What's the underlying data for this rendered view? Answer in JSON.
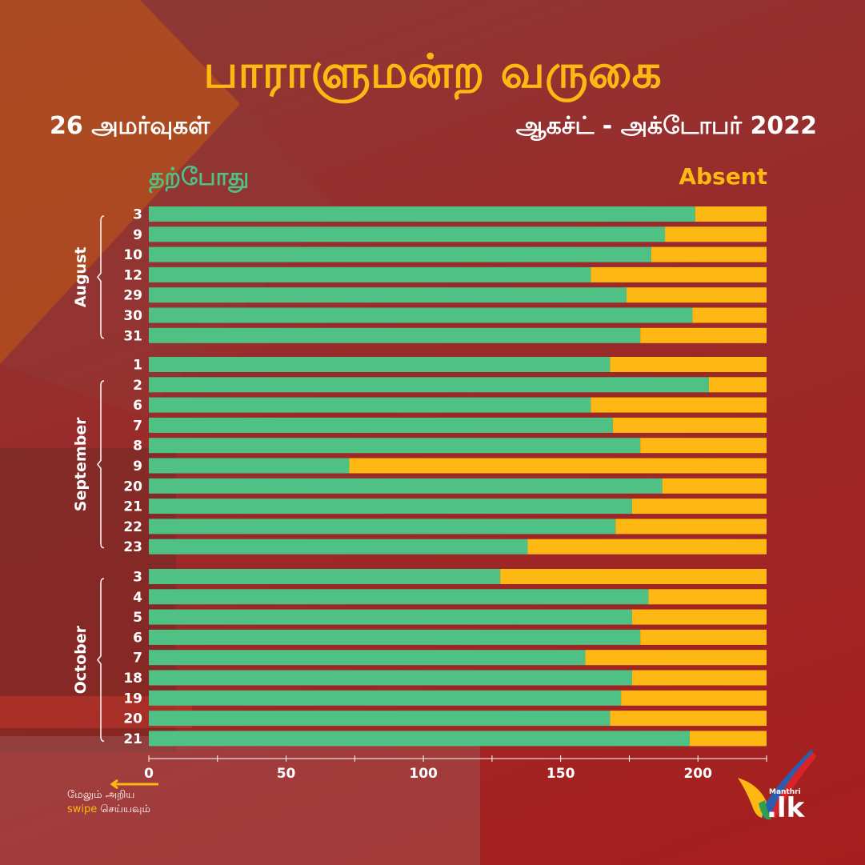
{
  "title": "பாராளுமன்ற வருகை",
  "subtitle_left": "26 அமர்வுகள்",
  "subtitle_right": "ஆகச்ட் - அக்டோபர் 2022",
  "legend": {
    "present": "தற்போது",
    "absent": "Absent"
  },
  "colors": {
    "present": "#4fc185",
    "absent": "#fdb813",
    "title": "#fdb813",
    "background": "#a61f1e"
  },
  "swipe": {
    "line1": "மேலும் அறிய",
    "keyword": "swipe",
    "line2_rest": " செய்யவும்"
  },
  "logo": {
    "small": "Manthri",
    "text": ".lk"
  },
  "chart_data": {
    "type": "bar",
    "orientation": "horizontal",
    "stacked": true,
    "xlim": [
      0,
      225
    ],
    "xticks": [
      0,
      50,
      100,
      150,
      200
    ],
    "total": 225,
    "groups": [
      {
        "label": "August",
        "sessions": [
          {
            "day": "3",
            "present": 199
          },
          {
            "day": "9",
            "present": 188
          },
          {
            "day": "10",
            "present": 183
          },
          {
            "day": "12",
            "present": 161
          },
          {
            "day": "29",
            "present": 174
          },
          {
            "day": "30",
            "present": 198
          },
          {
            "day": "31",
            "present": 179
          }
        ]
      },
      {
        "label": "September",
        "sessions": [
          {
            "day": "1",
            "present": 168
          },
          {
            "day": "2",
            "present": 204
          },
          {
            "day": "6",
            "present": 161
          },
          {
            "day": "7",
            "present": 169
          },
          {
            "day": "8",
            "present": 179
          },
          {
            "day": "9",
            "present": 73
          },
          {
            "day": "20",
            "present": 187
          },
          {
            "day": "21",
            "present": 176
          },
          {
            "day": "22",
            "present": 170
          },
          {
            "day": "23",
            "present": 138
          }
        ]
      },
      {
        "label": "October",
        "sessions": [
          {
            "day": "3",
            "present": 128
          },
          {
            "day": "4",
            "present": 182
          },
          {
            "day": "5",
            "present": 176
          },
          {
            "day": "6",
            "present": 179
          },
          {
            "day": "7",
            "present": 159
          },
          {
            "day": "18",
            "present": 176
          },
          {
            "day": "19",
            "present": 172
          },
          {
            "day": "20",
            "present": 168
          },
          {
            "day": "21",
            "present": 197
          }
        ]
      }
    ]
  }
}
